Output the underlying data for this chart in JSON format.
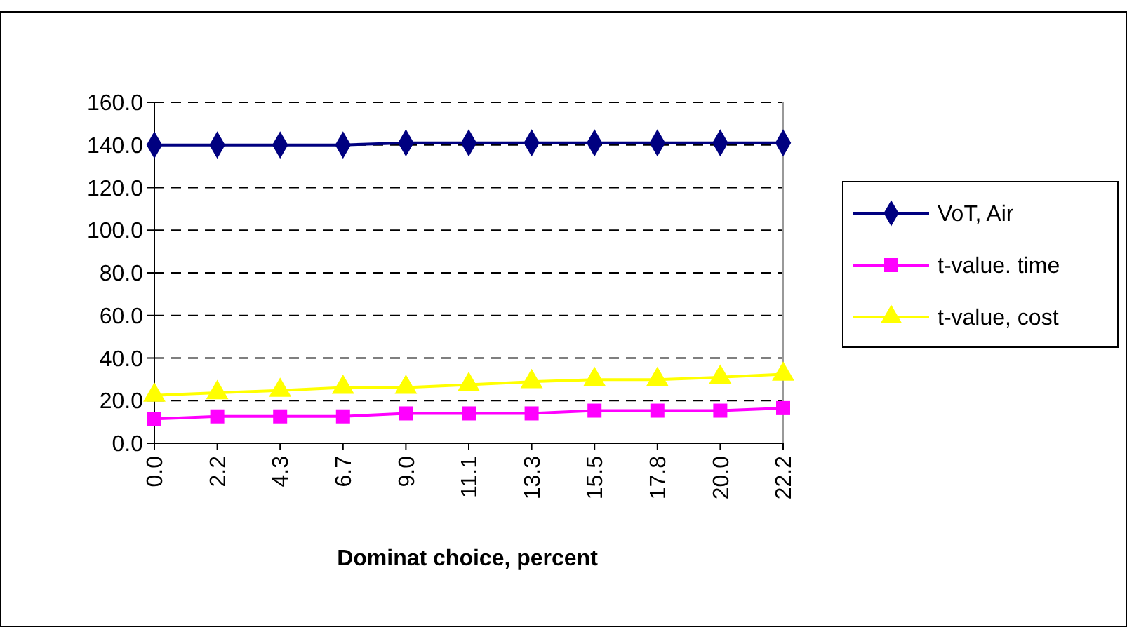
{
  "chart_data": {
    "type": "line",
    "xlabel": "Dominat choice, percent",
    "categories": [
      "0.0",
      "2.2",
      "4.3",
      "6.7",
      "9.0",
      "11.1",
      "13.3",
      "15.5",
      "17.8",
      "20.0",
      "22.2"
    ],
    "series": [
      {
        "name": "VoT, Air",
        "color": "#000080",
        "marker": "diamond",
        "values": [
          140,
          140,
          140,
          140,
          141,
          141,
          141,
          141,
          141,
          141,
          141
        ]
      },
      {
        "name": "t-value. time",
        "color": "#ff00ff",
        "marker": "square",
        "values": [
          11.4,
          12.6,
          12.6,
          12.6,
          14,
          14,
          14,
          15.3,
          15.3,
          15.3,
          16.5
        ]
      },
      {
        "name": "t-value, cost",
        "color": "#ffff00",
        "marker": "triangle",
        "values": [
          22.5,
          23.7,
          24.8,
          26.2,
          26.2,
          27.5,
          28.9,
          29.9,
          29.9,
          31,
          32.4
        ]
      }
    ],
    "ylim": [
      0,
      160
    ],
    "yticks": [
      {
        "value": 0,
        "label": "0.0"
      },
      {
        "value": 20,
        "label": "20.0"
      },
      {
        "value": 40,
        "label": "40.0"
      },
      {
        "value": 60,
        "label": "60.0"
      },
      {
        "value": 80,
        "label": "80.0"
      },
      {
        "value": 100,
        "label": "100.0"
      },
      {
        "value": 120,
        "label": "120.0"
      },
      {
        "value": 140,
        "label": "140.0"
      },
      {
        "value": 160,
        "label": "160.0"
      }
    ],
    "grid": "y",
    "legend": "right"
  }
}
